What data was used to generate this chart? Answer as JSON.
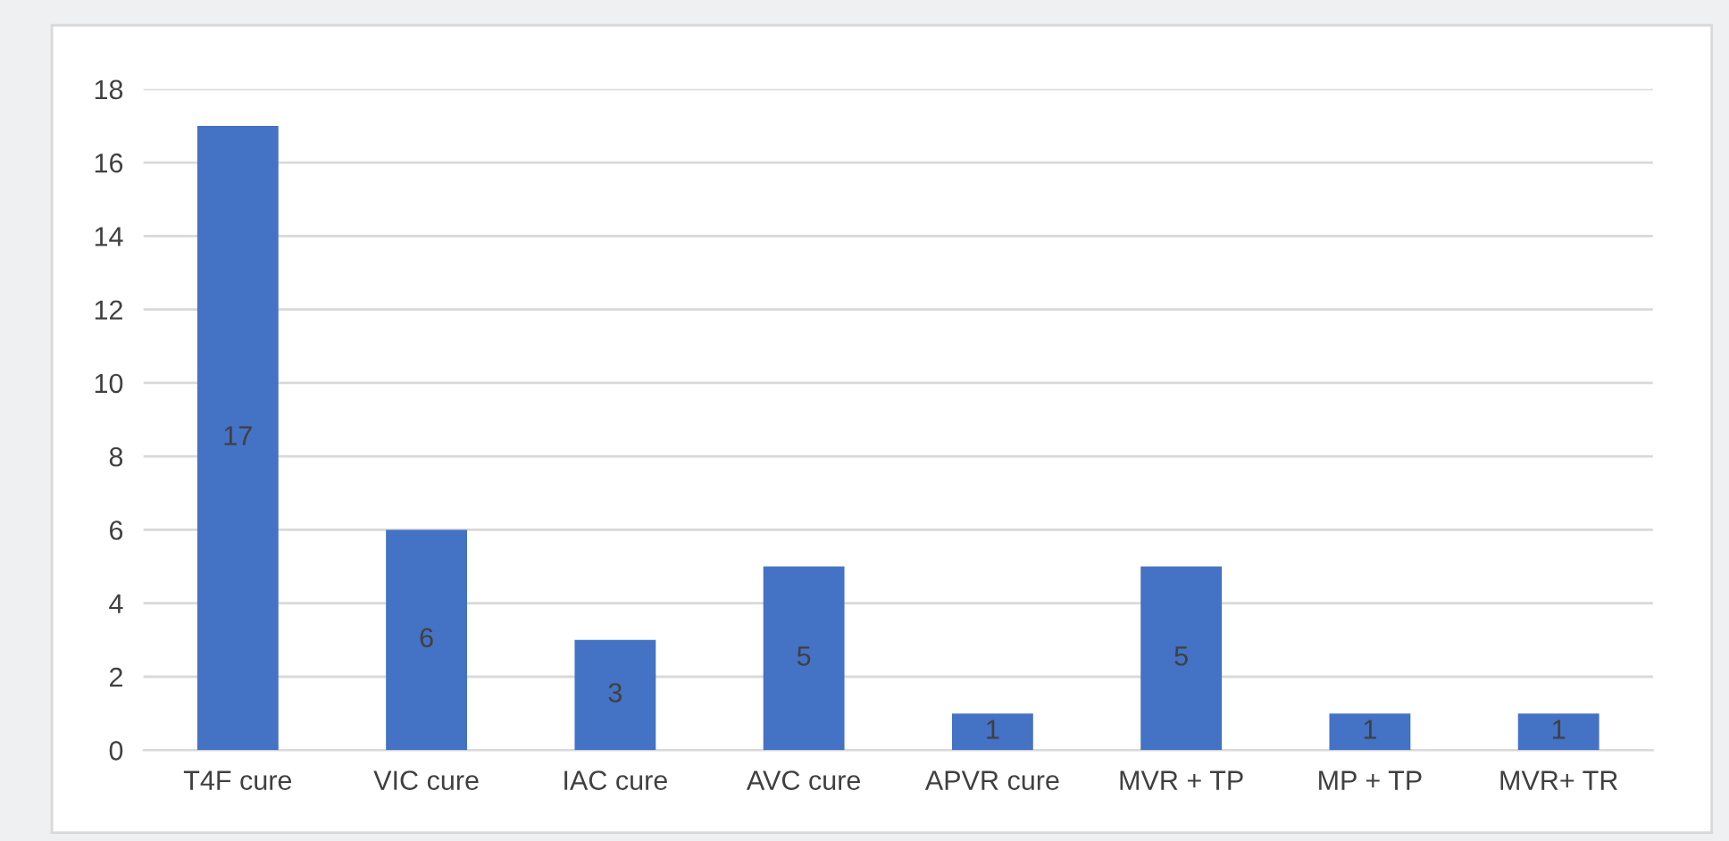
{
  "chart_data": {
    "type": "bar",
    "categories": [
      "T4F cure",
      "VIC cure",
      "IAC cure",
      "AVC cure",
      "APVR cure",
      "MVR + TP",
      "MP + TP",
      "MVR+ TR"
    ],
    "values": [
      17,
      6,
      3,
      5,
      1,
      5,
      1,
      1
    ],
    "color": "#4472c4",
    "ylim": [
      0,
      18
    ],
    "yticks": [
      0,
      2,
      4,
      6,
      8,
      10,
      12,
      14,
      16,
      18
    ],
    "grid": "y",
    "data_labels": true,
    "legend": false
  }
}
